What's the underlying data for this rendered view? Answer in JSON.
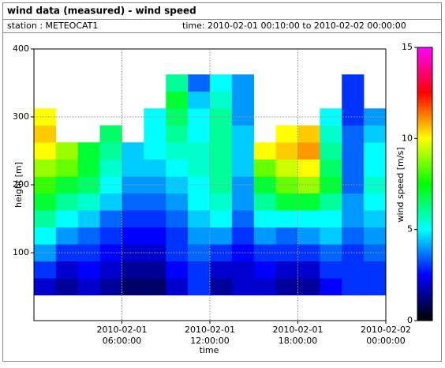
{
  "chart_data": {
    "type": "heatmap",
    "title": "wind data (measured) - wind speed",
    "station": "station : METEOCAT1",
    "period": "time: 2010-02-01 00:10:00 to 2010-02-02 00:00:00",
    "xlabel": "time",
    "ylabel": "height [m]",
    "zlabel": "wind speed [m/s]",
    "x": [
      0.75,
      2.25,
      3.75,
      5.25,
      6.75,
      8.25,
      9.75,
      11.25,
      12.75,
      14.25,
      15.75,
      17.25,
      18.75,
      20.25,
      21.75,
      23.25
    ],
    "y": [
      50,
      75,
      100,
      125,
      150,
      175,
      200,
      225,
      250,
      275,
      300,
      325,
      350
    ],
    "values": [
      [
        2,
        1.5,
        2,
        1.5,
        1,
        1,
        2,
        3,
        1.5,
        2,
        2,
        1.5,
        1.5,
        2.5,
        3,
        3
      ],
      [
        3,
        2,
        2.5,
        2,
        1.5,
        1.5,
        2.5,
        3,
        2,
        2,
        2.5,
        2,
        2,
        3,
        3,
        3
      ],
      [
        4,
        3,
        3,
        2.5,
        2,
        2,
        3,
        3.5,
        3,
        2.5,
        3,
        3,
        3,
        3.5,
        3,
        3.5
      ],
      [
        5,
        4,
        3.5,
        3,
        2.5,
        2.5,
        3,
        4,
        4,
        3,
        4,
        3.5,
        4,
        4.5,
        3.5,
        4
      ],
      [
        6,
        5,
        4.5,
        3.5,
        3,
        3,
        3.5,
        4.5,
        5,
        3.5,
        5,
        5,
        5,
        5,
        4,
        4.5
      ],
      [
        7,
        6,
        5.5,
        4.5,
        3.5,
        3.5,
        4,
        5,
        5.5,
        4,
        6,
        7,
        7,
        6,
        4,
        5
      ],
      [
        8,
        7,
        6.5,
        5,
        4,
        4,
        4.5,
        5,
        6,
        4,
        7,
        8.5,
        9,
        7,
        3.5,
        5.5
      ],
      [
        9,
        8.5,
        7,
        5.5,
        4.5,
        4.5,
        5,
        5.5,
        6,
        4.5,
        8.5,
        9.5,
        10,
        6.5,
        3.5,
        5
      ],
      [
        10,
        9,
        7,
        6,
        4.5,
        5,
        5.5,
        5.5,
        6,
        4.5,
        10,
        10.5,
        11,
        6,
        3.5,
        5
      ],
      [
        10.5,
        null,
        null,
        6.5,
        null,
        5,
        6,
        5,
        6,
        4.5,
        null,
        10,
        10.5,
        5.5,
        3.5,
        4.5
      ],
      [
        10,
        null,
        null,
        null,
        null,
        5,
        6.5,
        5,
        6,
        4,
        null,
        null,
        null,
        5,
        3,
        4
      ],
      [
        null,
        null,
        null,
        null,
        null,
        null,
        7,
        4.5,
        5.5,
        4,
        null,
        null,
        null,
        null,
        3,
        null
      ],
      [
        null,
        null,
        null,
        null,
        null,
        null,
        6,
        3.5,
        5,
        4,
        null,
        null,
        null,
        null,
        3,
        null
      ]
    ],
    "xlim": [
      0,
      24
    ],
    "xticks": [
      {
        "value": 6,
        "label": "2010-02-01 06:00:00"
      },
      {
        "value": 12,
        "label": "2010-02-01 12:00:00"
      },
      {
        "value": 18,
        "label": "2010-02-01 18:00:00"
      },
      {
        "value": 24,
        "label": "2010-02-02 00:00:00"
      }
    ],
    "ylim": [
      0,
      400
    ],
    "yticks": [
      100,
      200,
      300,
      400
    ],
    "zlim": [
      0,
      15
    ],
    "zticks": [
      0,
      5,
      10,
      15
    ],
    "colormap": [
      "#000000",
      "#0000ff",
      "#00ffff",
      "#00ff00",
      "#ffff00",
      "#ff0000",
      "#ff00ff"
    ],
    "grid": true
  }
}
